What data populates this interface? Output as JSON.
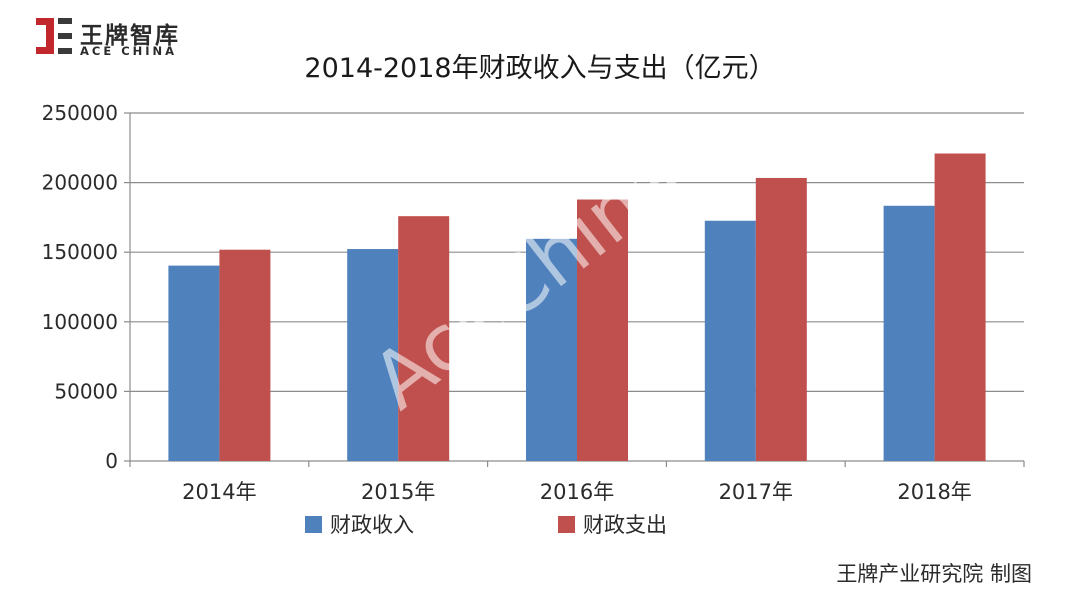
{
  "logo": {
    "cn": "王牌智库",
    "en": "ACE CHINA"
  },
  "watermark": "AceChina",
  "credit": "王牌产业研究院 制图",
  "colors": {
    "income": "#4f81bd",
    "expense": "#c0504d",
    "grid": "#8c8c8c",
    "logo_red": "#c1272d",
    "logo_dark": "#3a3a3a"
  },
  "chart_data": {
    "type": "bar",
    "title": "2014-2018年财政收入与支出（亿元）",
    "categories": [
      "2014年",
      "2015年",
      "2016年",
      "2017年",
      "2018年"
    ],
    "series": [
      {
        "name": "财政收入",
        "values": [
          140370,
          152269,
          159605,
          172593,
          183352
        ]
      },
      {
        "name": "财政支出",
        "values": [
          151786,
          175878,
          187841,
          203330,
          220906
        ]
      }
    ],
    "ylim": [
      0,
      250000
    ],
    "yticks": [
      0,
      50000,
      100000,
      150000,
      200000,
      250000
    ],
    "xlabel": "",
    "ylabel": "",
    "grid": true,
    "legend": "bottom"
  }
}
